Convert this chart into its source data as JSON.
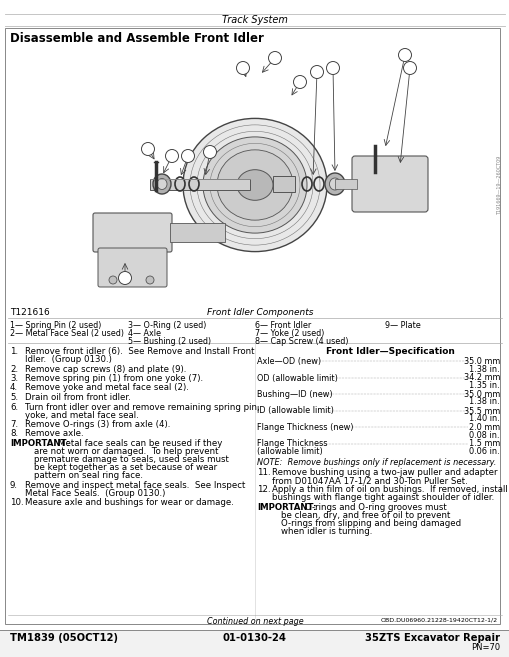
{
  "page_title": "Track System",
  "section_title": "Disassemble and Assemble Front Idler",
  "diagram_label": "T121616",
  "diagram_caption": "Front Idler Components",
  "parts_list": [
    [
      "1— Spring Pin (2 used)",
      "3— O-Ring (2 used)",
      "6— Front Idler",
      "9— Plate"
    ],
    [
      "2— Metal Face Seal (2 used)",
      "4— Axle",
      "7— Yoke (2 used)",
      ""
    ],
    [
      "",
      "5— Bushing (2 used)",
      "8— Cap Screw (4 used)",
      ""
    ]
  ],
  "steps_left": [
    [
      "1.",
      "Remove front idler (6).  See Remove and Install Front\nIdler.  (Group 0130.)",
      false
    ],
    [
      "2.",
      "Remove cap screws (8) and plate (9).",
      false
    ],
    [
      "3.",
      "Remove spring pin (1) from one yoke (7).",
      false
    ],
    [
      "4.",
      "Remove yoke and metal face seal (2).",
      false
    ],
    [
      "5.",
      "Drain oil from front idler.",
      false
    ],
    [
      "6.",
      "Turn front idler over and remove remaining spring pin,\nyoke, and metal face seal.",
      false
    ],
    [
      "7.",
      "Remove O-rings (3) from axle (4).",
      false
    ],
    [
      "8.",
      "Remove axle.",
      false
    ],
    [
      "IMPORTANT:",
      "Metal face seals can be reused if they\nare not worn or damaged.  To help prevent\npremature damage to seals, used seals must\nbe kept together as a set because of wear\npattern on seal ring face.",
      true
    ],
    [
      "9.",
      "Remove and inspect metal face seals.  See Inspect\nMetal Face Seals.  (Group 0130.)",
      false
    ],
    [
      "10.",
      "Measure axle and bushings for wear or damage.",
      false
    ]
  ],
  "spec_title": "Front Idler—Specification",
  "specs": [
    [
      "Axle—OD (new)",
      "35.0 mm",
      "1.38 in."
    ],
    [
      "OD (allowable limit)",
      "34.2 mm",
      "1.35 in."
    ],
    [
      "Bushing—ID (new)",
      "35.0 mm",
      "1.38 in."
    ],
    [
      "ID (allowable limit)",
      "35.5 mm",
      "1.40 in."
    ],
    [
      "Flange Thickness (new)",
      "2.0 mm",
      "0.08 in."
    ],
    [
      "Flange Thickness\n(allowable limit)",
      "1.5 mm",
      "0.06 in."
    ]
  ],
  "note": "NOTE:  Remove bushings only if replacement is necessary.",
  "steps_right": [
    [
      "11.",
      "Remove bushing using a two-jaw puller and adapter\nfrom D01047AA 17-1/2 and 30-Ton Puller Set.",
      false
    ],
    [
      "12.",
      "Apply a thin film of oil on bushings.  If removed, install\nbushings with flange tight against shoulder of idler.",
      false
    ],
    [
      "IMPORTANT:",
      "O-rings and O-ring grooves must\nbe clean, dry, and free of oil to prevent\nO-rings from slipping and being damaged\nwhen idler is turning.",
      true
    ]
  ],
  "continued": "Continued on next page",
  "doc_code_right": "OBD.DU06960.21228-19420CT12-1/2",
  "footer_left": "TM1839 (05OCT12)",
  "footer_center": "01-0130-24",
  "footer_right": "35ZTS Excavator Repair",
  "footer_pn": "PN=70",
  "side_text": "T191669—19—260CT09"
}
